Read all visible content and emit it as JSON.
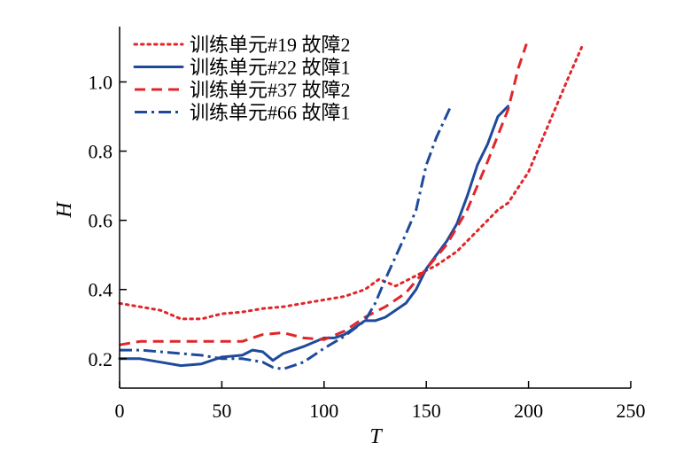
{
  "chart_data": {
    "type": "line",
    "title": "",
    "xlabel": "T",
    "ylabel": "H",
    "xlim": [
      0,
      250
    ],
    "ylim": [
      0.115,
      1.16
    ],
    "xticks": [
      0,
      50,
      100,
      150,
      200,
      250
    ],
    "xtick_labels": [
      "0",
      "50",
      "100",
      "150",
      "200",
      "250"
    ],
    "yticks": [
      0.2,
      0.4,
      0.6,
      0.8,
      1.0
    ],
    "ytick_labels": [
      "0.2",
      "0.4",
      "0.6",
      "0.8",
      "1.0"
    ],
    "grid": false,
    "legend_position": "top-left",
    "series": [
      {
        "name": "训练单元#19 故障2",
        "color": "#e0262b",
        "style": "dotted",
        "x": [
          0,
          10,
          20,
          30,
          40,
          50,
          60,
          70,
          80,
          90,
          100,
          110,
          120,
          127,
          135,
          145,
          155,
          165,
          175,
          185,
          190,
          200,
          210,
          220,
          226
        ],
        "y": [
          0.36,
          0.35,
          0.34,
          0.315,
          0.315,
          0.33,
          0.335,
          0.345,
          0.35,
          0.36,
          0.37,
          0.38,
          0.4,
          0.43,
          0.41,
          0.44,
          0.47,
          0.51,
          0.57,
          0.63,
          0.65,
          0.74,
          0.88,
          1.02,
          1.1
        ]
      },
      {
        "name": "训练单元#22 故障1",
        "color": "#1f4a9c",
        "style": "solid",
        "x": [
          0,
          10,
          20,
          30,
          40,
          50,
          60,
          65,
          70,
          75,
          80,
          90,
          100,
          105,
          110,
          115,
          120,
          125,
          130,
          140,
          145,
          150,
          155,
          160,
          165,
          170,
          175,
          180,
          185,
          190
        ],
        "y": [
          0.2,
          0.2,
          0.19,
          0.18,
          0.185,
          0.205,
          0.21,
          0.225,
          0.22,
          0.195,
          0.215,
          0.235,
          0.26,
          0.26,
          0.27,
          0.29,
          0.31,
          0.31,
          0.32,
          0.36,
          0.4,
          0.46,
          0.5,
          0.54,
          0.59,
          0.67,
          0.76,
          0.82,
          0.9,
          0.93
        ]
      },
      {
        "name": "训练单元#37 故障2",
        "color": "#e0262b",
        "style": "dashed",
        "x": [
          0,
          10,
          20,
          30,
          40,
          50,
          60,
          70,
          80,
          90,
          100,
          110,
          120,
          130,
          140,
          150,
          160,
          170,
          180,
          190,
          195,
          199
        ],
        "y": [
          0.24,
          0.25,
          0.25,
          0.25,
          0.25,
          0.25,
          0.25,
          0.27,
          0.275,
          0.26,
          0.255,
          0.28,
          0.32,
          0.35,
          0.39,
          0.46,
          0.53,
          0.63,
          0.77,
          0.92,
          1.04,
          1.11
        ]
      },
      {
        "name": "训练单元#66 故障1",
        "color": "#1f4a9c",
        "style": "dashdot",
        "x": [
          0,
          10,
          20,
          30,
          40,
          50,
          60,
          70,
          75,
          80,
          90,
          100,
          110,
          120,
          125,
          130,
          140,
          145,
          150,
          155,
          162
        ],
        "y": [
          0.225,
          0.225,
          0.22,
          0.215,
          0.21,
          0.2,
          0.2,
          0.19,
          0.175,
          0.17,
          0.19,
          0.23,
          0.265,
          0.31,
          0.36,
          0.43,
          0.56,
          0.63,
          0.76,
          0.84,
          0.93
        ]
      }
    ]
  }
}
